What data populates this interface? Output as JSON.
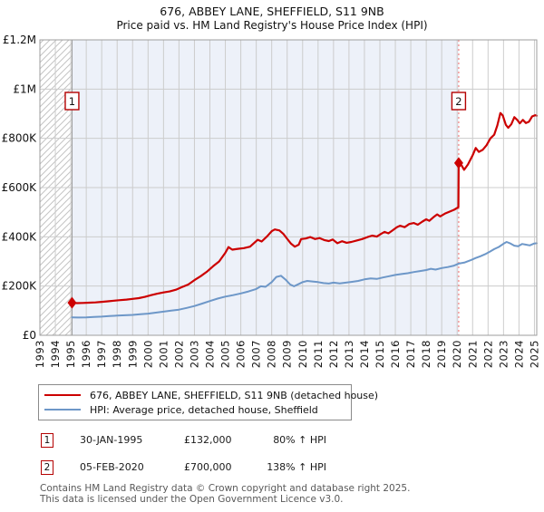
{
  "chart_data": {
    "type": "line",
    "title": "676, ABBEY LANE, SHEFFIELD, S11 9NB",
    "subtitle": "Price paid vs. HM Land Registry's House Price Index (HPI)",
    "x_range": [
      1993,
      2025.15
    ],
    "y_range": [
      0,
      1200000
    ],
    "x_ticks": [
      1993,
      1994,
      1995,
      1996,
      1997,
      1998,
      1999,
      2000,
      2001,
      2002,
      2003,
      2004,
      2005,
      2006,
      2007,
      2008,
      2009,
      2010,
      2011,
      2012,
      2013,
      2014,
      2015,
      2016,
      2017,
      2018,
      2019,
      2020,
      2021,
      2022,
      2023,
      2024,
      2025
    ],
    "y_ticks": [
      {
        "value": 0,
        "label": "£0"
      },
      {
        "value": 200000,
        "label": "£200K"
      },
      {
        "value": 400000,
        "label": "£400K"
      },
      {
        "value": 600000,
        "label": "£600K"
      },
      {
        "value": 800000,
        "label": "£800K"
      },
      {
        "value": 1000000,
        "label": "£1M"
      },
      {
        "value": 1200000,
        "label": "£1.2M"
      }
    ],
    "grid": true,
    "legend_position": "bottom",
    "hatched_region": [
      1993,
      1995.08
    ],
    "shaded_region": [
      1995.08,
      2020.1
    ],
    "sale_dashed_line_x": 2020.1,
    "colors": {
      "property": "#cc0000",
      "hpi": "#6d97c8",
      "shaded": "#edf1f9",
      "grid": "#cccccc",
      "border": "#9e9e9e",
      "hatch": "#c4c4c4",
      "dashed": "#f28080",
      "marker_box_border": "#b40000"
    },
    "markers": [
      {
        "num": "1",
        "x": 1995.08,
        "y": 132000
      },
      {
        "num": "2",
        "x": 2020.1,
        "y": 700000
      }
    ],
    "legend": [
      {
        "key": "property",
        "label": "676, ABBEY LANE, SHEFFIELD, S11 9NB (detached house)"
      },
      {
        "key": "hpi",
        "label": "HPI: Average price, detached house, Sheffield"
      }
    ],
    "series": [
      {
        "name": "property",
        "color": "#cc0000",
        "width": 2.2,
        "points": [
          [
            1995.08,
            132000
          ],
          [
            1995.4,
            130500
          ],
          [
            1995.8,
            131500
          ],
          [
            1996.2,
            132500
          ],
          [
            1996.6,
            133500
          ],
          [
            1997.0,
            136000
          ],
          [
            1997.4,
            138000
          ],
          [
            1997.8,
            140500
          ],
          [
            1998.2,
            143000
          ],
          [
            1998.6,
            145000
          ],
          [
            1999.0,
            148000
          ],
          [
            1999.4,
            151000
          ],
          [
            1999.8,
            156000
          ],
          [
            2000.2,
            163000
          ],
          [
            2000.6,
            169000
          ],
          [
            2001.0,
            174000
          ],
          [
            2001.4,
            178000
          ],
          [
            2001.8,
            185000
          ],
          [
            2002.2,
            196000
          ],
          [
            2002.6,
            206000
          ],
          [
            2003.0,
            224000
          ],
          [
            2003.4,
            240000
          ],
          [
            2003.8,
            258000
          ],
          [
            2004.2,
            280000
          ],
          [
            2004.6,
            300000
          ],
          [
            2005.0,
            335000
          ],
          [
            2005.2,
            358000
          ],
          [
            2005.45,
            348000
          ],
          [
            2005.8,
            351000
          ],
          [
            2006.2,
            354000
          ],
          [
            2006.6,
            360000
          ],
          [
            2006.9,
            377000
          ],
          [
            2007.1,
            388000
          ],
          [
            2007.35,
            381000
          ],
          [
            2007.7,
            402000
          ],
          [
            2008.0,
            423000
          ],
          [
            2008.2,
            430000
          ],
          [
            2008.5,
            426000
          ],
          [
            2008.75,
            412000
          ],
          [
            2009.0,
            392000
          ],
          [
            2009.25,
            372000
          ],
          [
            2009.5,
            360000
          ],
          [
            2009.75,
            368000
          ],
          [
            2009.9,
            391000
          ],
          [
            2010.2,
            393000
          ],
          [
            2010.5,
            399000
          ],
          [
            2010.8,
            391000
          ],
          [
            2011.1,
            395000
          ],
          [
            2011.4,
            387000
          ],
          [
            2011.7,
            383000
          ],
          [
            2011.95,
            389000
          ],
          [
            2012.25,
            374000
          ],
          [
            2012.55,
            382000
          ],
          [
            2012.85,
            376000
          ],
          [
            2013.15,
            379000
          ],
          [
            2013.5,
            385000
          ],
          [
            2013.85,
            391000
          ],
          [
            2014.2,
            399000
          ],
          [
            2014.5,
            405000
          ],
          [
            2014.8,
            401000
          ],
          [
            2015.1,
            413000
          ],
          [
            2015.3,
            420000
          ],
          [
            2015.55,
            414000
          ],
          [
            2015.8,
            425000
          ],
          [
            2016.1,
            439000
          ],
          [
            2016.3,
            445000
          ],
          [
            2016.6,
            439000
          ],
          [
            2016.9,
            452000
          ],
          [
            2017.2,
            456000
          ],
          [
            2017.45,
            449000
          ],
          [
            2017.75,
            462000
          ],
          [
            2018.0,
            471000
          ],
          [
            2018.2,
            465000
          ],
          [
            2018.45,
            479000
          ],
          [
            2018.7,
            491000
          ],
          [
            2018.9,
            483000
          ],
          [
            2019.2,
            494000
          ],
          [
            2019.5,
            502000
          ],
          [
            2019.8,
            510000
          ],
          [
            2020.0,
            517000
          ],
          [
            2020.08,
            521000
          ],
          [
            2020.1,
            700000
          ],
          [
            2020.3,
            689000
          ],
          [
            2020.45,
            672000
          ],
          [
            2020.7,
            694000
          ],
          [
            2021.0,
            731000
          ],
          [
            2021.2,
            761000
          ],
          [
            2021.4,
            745000
          ],
          [
            2021.65,
            753000
          ],
          [
            2021.9,
            772000
          ],
          [
            2022.15,
            800000
          ],
          [
            2022.4,
            815000
          ],
          [
            2022.6,
            852000
          ],
          [
            2022.8,
            903000
          ],
          [
            2022.95,
            893000
          ],
          [
            2023.15,
            855000
          ],
          [
            2023.3,
            843000
          ],
          [
            2023.5,
            857000
          ],
          [
            2023.7,
            886000
          ],
          [
            2023.9,
            874000
          ],
          [
            2024.05,
            861000
          ],
          [
            2024.25,
            875000
          ],
          [
            2024.45,
            862000
          ],
          [
            2024.65,
            868000
          ],
          [
            2024.85,
            889000
          ],
          [
            2025.05,
            894000
          ],
          [
            2025.15,
            892000
          ]
        ]
      },
      {
        "name": "hpi",
        "color": "#6d97c8",
        "width": 2.0,
        "points": [
          [
            1995.08,
            73000
          ],
          [
            1995.5,
            72000
          ],
          [
            1996.0,
            73000
          ],
          [
            1996.5,
            74500
          ],
          [
            1997.0,
            76000
          ],
          [
            1997.5,
            78000
          ],
          [
            1998.0,
            80000
          ],
          [
            1998.5,
            81500
          ],
          [
            1999.0,
            83000
          ],
          [
            1999.5,
            85500
          ],
          [
            2000.0,
            88000
          ],
          [
            2000.5,
            92000
          ],
          [
            2001.0,
            96000
          ],
          [
            2001.5,
            100000
          ],
          [
            2002.0,
            104000
          ],
          [
            2002.5,
            111000
          ],
          [
            2003.0,
            119000
          ],
          [
            2003.5,
            129000
          ],
          [
            2004.0,
            139000
          ],
          [
            2004.5,
            149000
          ],
          [
            2005.0,
            157000
          ],
          [
            2005.5,
            163000
          ],
          [
            2006.0,
            170000
          ],
          [
            2006.5,
            178000
          ],
          [
            2007.0,
            188000
          ],
          [
            2007.3,
            199000
          ],
          [
            2007.6,
            197000
          ],
          [
            2008.0,
            216000
          ],
          [
            2008.3,
            237000
          ],
          [
            2008.6,
            242000
          ],
          [
            2008.9,
            226000
          ],
          [
            2009.2,
            206000
          ],
          [
            2009.45,
            199000
          ],
          [
            2009.7,
            207000
          ],
          [
            2010.0,
            216000
          ],
          [
            2010.3,
            221000
          ],
          [
            2010.7,
            218000
          ],
          [
            2011.0,
            216000
          ],
          [
            2011.35,
            212000
          ],
          [
            2011.7,
            210000
          ],
          [
            2012.0,
            214000
          ],
          [
            2012.4,
            211000
          ],
          [
            2012.8,
            214000
          ],
          [
            2013.2,
            217000
          ],
          [
            2013.6,
            221000
          ],
          [
            2014.0,
            227000
          ],
          [
            2014.4,
            231000
          ],
          [
            2014.8,
            229000
          ],
          [
            2015.2,
            235000
          ],
          [
            2015.6,
            240000
          ],
          [
            2016.0,
            245000
          ],
          [
            2016.4,
            249000
          ],
          [
            2016.8,
            252000
          ],
          [
            2017.2,
            257000
          ],
          [
            2017.6,
            261000
          ],
          [
            2018.0,
            265000
          ],
          [
            2018.3,
            270000
          ],
          [
            2018.6,
            267000
          ],
          [
            2019.0,
            273000
          ],
          [
            2019.4,
            277000
          ],
          [
            2019.8,
            283000
          ],
          [
            2020.1,
            291000
          ],
          [
            2020.5,
            296000
          ],
          [
            2020.9,
            306000
          ],
          [
            2021.2,
            314000
          ],
          [
            2021.5,
            321000
          ],
          [
            2021.8,
            329000
          ],
          [
            2022.1,
            339000
          ],
          [
            2022.4,
            350000
          ],
          [
            2022.7,
            359000
          ],
          [
            2023.0,
            372000
          ],
          [
            2023.2,
            379000
          ],
          [
            2023.45,
            373000
          ],
          [
            2023.7,
            364000
          ],
          [
            2023.95,
            362000
          ],
          [
            2024.2,
            371000
          ],
          [
            2024.45,
            368000
          ],
          [
            2024.7,
            365000
          ],
          [
            2024.95,
            372000
          ],
          [
            2025.15,
            374000
          ]
        ]
      }
    ]
  },
  "sales_table": [
    {
      "num": "1",
      "date": "30-JAN-1995",
      "price": "£132,000",
      "vs_hpi": "80% ↑ HPI"
    },
    {
      "num": "2",
      "date": "05-FEB-2020",
      "price": "£700,000",
      "vs_hpi": "138% ↑ HPI"
    }
  ],
  "footer": {
    "line1": "Contains HM Land Registry data © Crown copyright and database right 2025.",
    "line2": "This data is licensed under the Open Government Licence v3.0."
  }
}
